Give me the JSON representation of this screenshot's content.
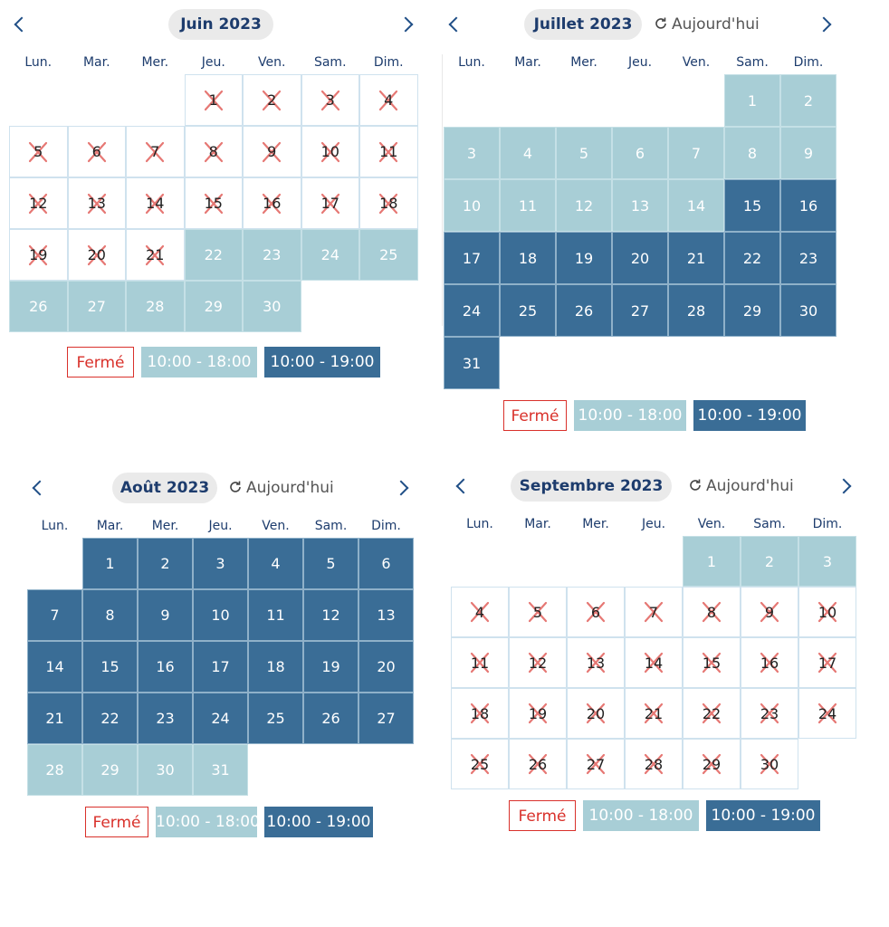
{
  "weekdays": [
    "Lun.",
    "Mar.",
    "Mer.",
    "Jeu.",
    "Ven.",
    "Sam.",
    "Dim."
  ],
  "today_label": "Aujourd'hui",
  "colors": {
    "closed": "#d9312b",
    "light": "#a8ced6",
    "dark": "#3a6d96"
  },
  "legend": {
    "closed": "Fermé",
    "light": "10:00 - 18:00",
    "dark": "10:00 - 19:00"
  },
  "calendars": [
    {
      "title": "Juin 2023",
      "show_today": false,
      "first_weekday": 3,
      "days": 30,
      "schedule": [
        {
          "from": 1,
          "to": 21,
          "status": "closed"
        },
        {
          "from": 22,
          "to": 30,
          "status": "light"
        }
      ]
    },
    {
      "title": "Juillet 2023",
      "show_today": true,
      "first_weekday": 5,
      "days": 31,
      "schedule": [
        {
          "from": 1,
          "to": 14,
          "status": "light"
        },
        {
          "from": 15,
          "to": 31,
          "status": "dark"
        }
      ]
    },
    {
      "title": "Août 2023",
      "show_today": true,
      "first_weekday": 1,
      "days": 31,
      "schedule": [
        {
          "from": 1,
          "to": 27,
          "status": "dark"
        },
        {
          "from": 28,
          "to": 31,
          "status": "light"
        }
      ]
    },
    {
      "title": "Septembre 2023",
      "show_today": true,
      "first_weekday": 4,
      "days": 30,
      "schedule": [
        {
          "from": 1,
          "to": 3,
          "status": "light"
        },
        {
          "from": 4,
          "to": 30,
          "status": "closed"
        }
      ]
    }
  ]
}
